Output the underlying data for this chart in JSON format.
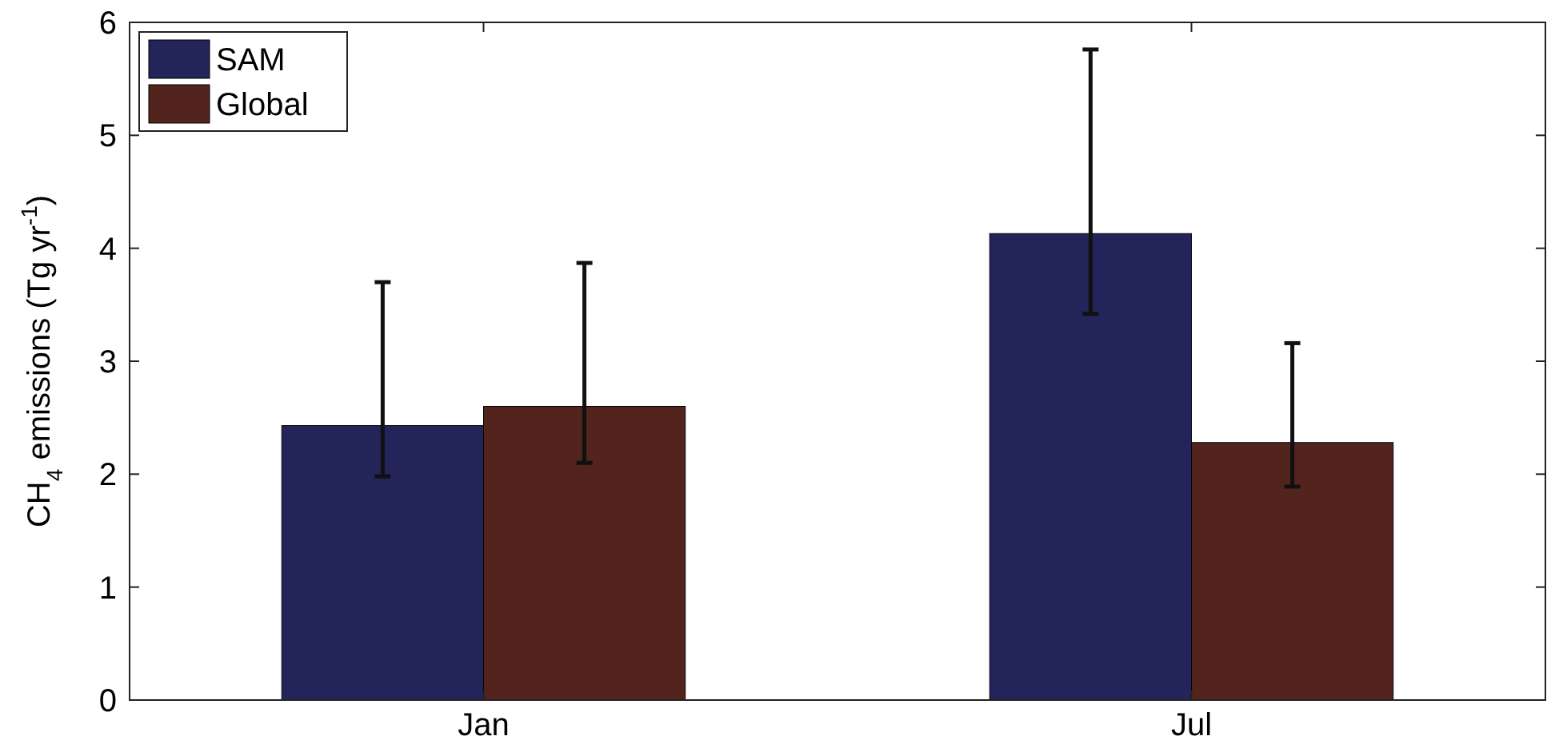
{
  "chart_data": {
    "type": "bar",
    "ylabel": "CH$_{4}$ emissions (Tg yr$^{-1}$)",
    "categories": [
      "Jan",
      "Jul"
    ],
    "series": [
      {
        "name": "SAM",
        "color": "#23245a",
        "values": [
          2.43,
          4.13
        ],
        "errors": [
          [
            1.98,
            3.7
          ],
          [
            3.42,
            5.76
          ]
        ]
      },
      {
        "name": "Global",
        "color": "#53231e",
        "values": [
          2.6,
          2.28
        ],
        "errors": [
          [
            2.1,
            3.87
          ],
          [
            1.89,
            3.16
          ]
        ]
      }
    ],
    "ylim": [
      0,
      6
    ],
    "yticks": [
      0,
      1,
      2,
      3,
      4,
      5,
      6
    ],
    "legend": "top left"
  }
}
